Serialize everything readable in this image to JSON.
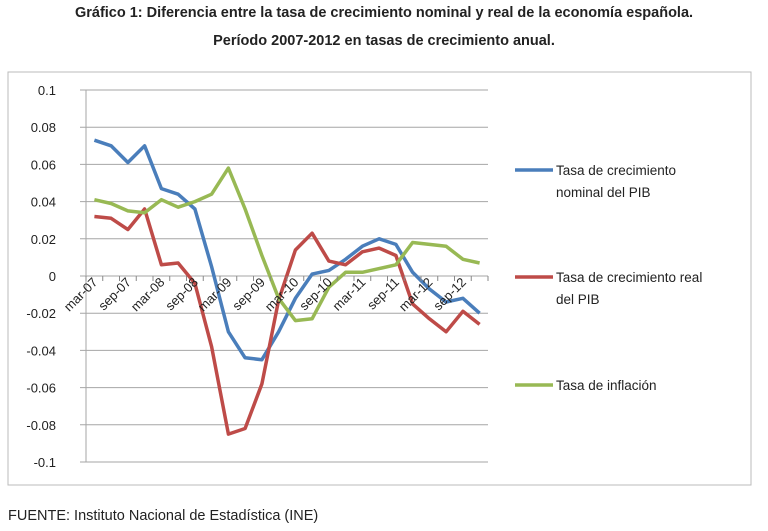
{
  "title_line1": "Gráfico 1: Diferencia entre la tasa de crecimiento nominal y real de la economía española.",
  "title_line2": "Período 2007-2012 en tasas de crecimiento anual.",
  "source": "FUENTE: Instituto Nacional de Estadística (INE)",
  "chart_data": {
    "type": "line",
    "title": "",
    "xlabel": "",
    "ylabel": "",
    "ylim": [
      -0.1,
      0.1
    ],
    "yticks": [
      "0.1",
      "0.08",
      "0.06",
      "0.04",
      "0.02",
      "0",
      "-0.02",
      "-0.04",
      "-0.06",
      "-0.08",
      "-0.1"
    ],
    "grid": "horizontal",
    "legend": "right",
    "categories": [
      "mar-07",
      "jun-07",
      "sep-07",
      "dic-07",
      "mar-08",
      "jun-08",
      "sep-08",
      "dic-08",
      "mar-09",
      "jun-09",
      "sep-09",
      "dic-09",
      "mar-10",
      "jun-10",
      "sep-10",
      "dic-10",
      "mar-11",
      "jun-11",
      "sep-11",
      "dic-11",
      "mar-12",
      "jun-12",
      "sep-12",
      "dic-12"
    ],
    "xtick_labels": [
      "mar-07",
      "sep-07",
      "mar-08",
      "sep-08",
      "mar-09",
      "sep-09",
      "mar-10",
      "sep-10",
      "mar-11",
      "sep-11",
      "mar-12",
      "sep-12"
    ],
    "series": [
      {
        "name_lines": [
          "Tasa de crecimiento",
          "nominal del PIB"
        ],
        "color": "#4a7ebb",
        "values": [
          0.073,
          0.07,
          0.061,
          0.07,
          0.047,
          0.044,
          0.036,
          0.005,
          -0.03,
          -0.044,
          -0.045,
          -0.03,
          -0.012,
          0.001,
          0.003,
          0.009,
          0.016,
          0.02,
          0.017,
          0.002,
          -0.007,
          -0.014,
          -0.012,
          -0.02
        ]
      },
      {
        "name_lines": [
          "Tasa de crecimiento real",
          "del PIB"
        ],
        "color": "#be4b48",
        "values": [
          0.032,
          0.031,
          0.025,
          0.036,
          0.006,
          0.007,
          -0.004,
          -0.038,
          -0.085,
          -0.082,
          -0.058,
          -0.013,
          0.014,
          0.023,
          0.008,
          0.006,
          0.013,
          0.015,
          0.011,
          -0.015,
          -0.023,
          -0.03,
          -0.019,
          -0.026
        ]
      },
      {
        "name_lines": [
          "Tasa de inflación"
        ],
        "color": "#98b954",
        "values": [
          0.041,
          0.039,
          0.035,
          0.034,
          0.041,
          0.037,
          0.04,
          0.044,
          0.058,
          0.036,
          0.011,
          -0.012,
          -0.024,
          -0.023,
          -0.006,
          0.002,
          0.002,
          0.004,
          0.006,
          0.018,
          0.017,
          0.016,
          0.009,
          0.007
        ]
      }
    ]
  }
}
